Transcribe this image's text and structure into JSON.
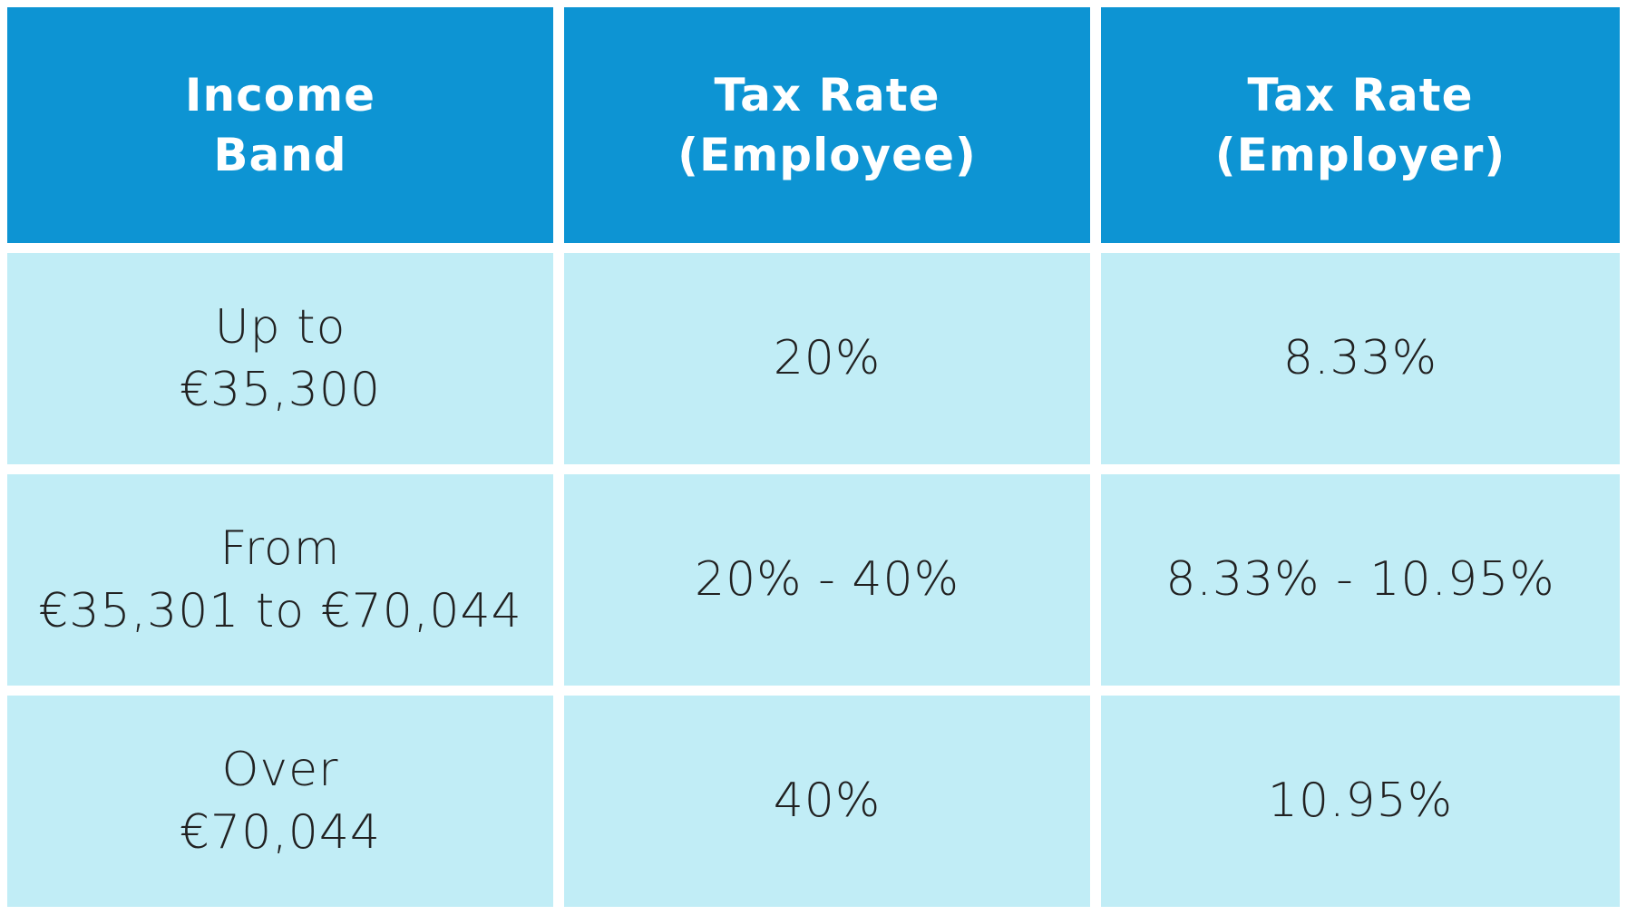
{
  "title": "Income tax bands and rates table",
  "colors": {
    "header_background": "#0d94d3",
    "header_text": "#ffffff",
    "cell_background": "#c1edf6",
    "cell_text": "#212121",
    "gutter": "#ffffff"
  },
  "table": {
    "headers": [
      "Income\nBand",
      "Tax Rate (Employee)",
      "Tax Rate (Employer)"
    ],
    "rows": [
      [
        "Up to\n€35,300",
        "20%",
        "8.33%"
      ],
      [
        "From\n€35,301 to €70,044",
        "20% - 40%",
        "8.33% - 10.95%"
      ],
      [
        "Over\n€70,044",
        "40%",
        "10.95%"
      ]
    ]
  },
  "chart_data": {
    "type": "table",
    "columns": [
      "Income Band",
      "Tax Rate (Employee)",
      "Tax Rate (Employer)"
    ],
    "rows": [
      [
        "Up to €35,300",
        "20%",
        "8.33%"
      ],
      [
        "From €35,301 to €70,044",
        "20% - 40%",
        "8.33% - 10.95%"
      ],
      [
        "Over €70,044",
        "40%",
        "10.95%"
      ]
    ],
    "notes": "Header row dark blue with white text; body rows light blue with dark thin text; white gutters between all cells"
  }
}
